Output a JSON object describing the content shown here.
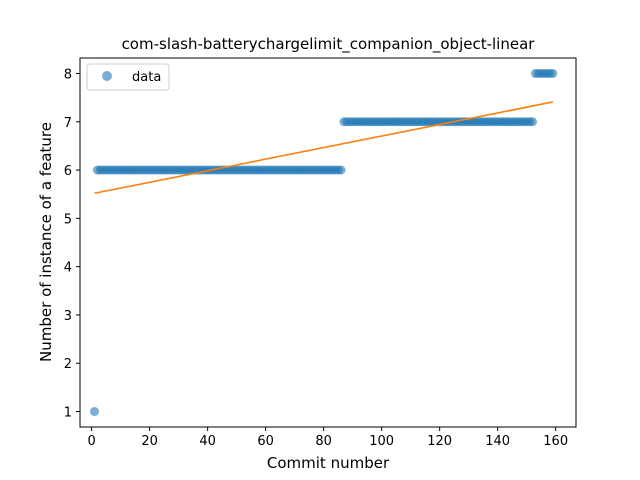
{
  "chart_data": {
    "type": "scatter",
    "title": "com-slash-batterychargelimit_companion_object-linear",
    "xlabel": "Commit number",
    "ylabel": "Number of instance of a feature",
    "xlim": [
      -4,
      167
    ],
    "ylim": [
      0.68,
      8.32
    ],
    "xticks": [
      0,
      20,
      40,
      60,
      80,
      100,
      120,
      140,
      160
    ],
    "yticks": [
      1,
      2,
      3,
      4,
      5,
      6,
      7,
      8
    ],
    "grid": false,
    "legend": {
      "position": "top-left",
      "entries": [
        "data"
      ]
    },
    "colors": {
      "data": "#1f77b4",
      "fit": "#ff7f0e"
    },
    "series": [
      {
        "name": "data",
        "kind": "scatter",
        "segments": [
          {
            "x_start": 1,
            "x_end": 1,
            "y": 1
          },
          {
            "x_start": 2,
            "x_end": 86,
            "y": 6
          },
          {
            "x_start": 87,
            "x_end": 152,
            "y": 7
          },
          {
            "x_start": 153,
            "x_end": 159,
            "y": 8
          }
        ]
      },
      {
        "kind": "line",
        "x": [
          1,
          159
        ],
        "y": [
          5.52,
          7.41
        ]
      }
    ]
  }
}
